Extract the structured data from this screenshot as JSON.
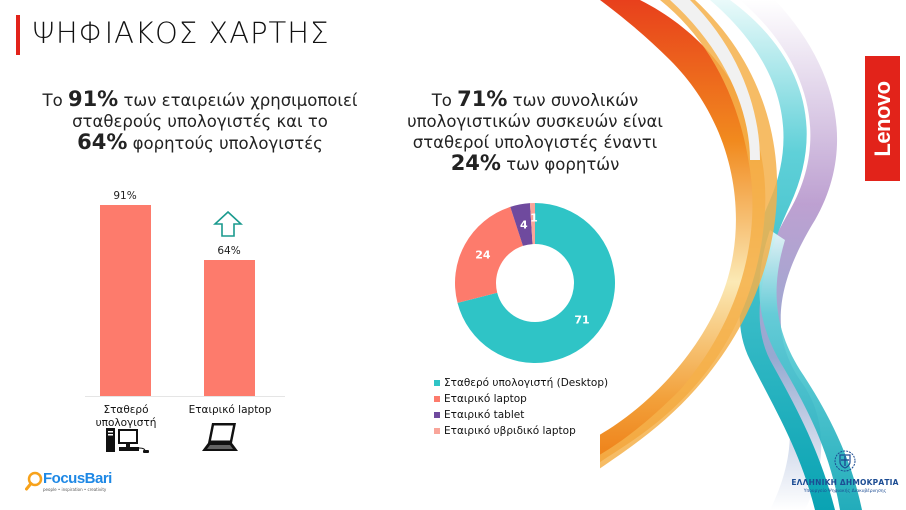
{
  "page": {
    "title": "ΨΗΦΙΑΚΟΣ ΧΑΡΤΗΣ",
    "accent_color": "#e2231a"
  },
  "left_panel": {
    "headline": {
      "part1": "Το ",
      "bold1": "91%",
      "part2": " των εταιρειών χρησιμοποιεί σταθερούς υπολογιστές και το ",
      "bold2": "64%",
      "part3": " φορητούς υπολογιστές"
    },
    "bars": [
      {
        "label": "Σταθερό υπολογιστή",
        "value_label": "91%",
        "icon": "desktop-computer-icon"
      },
      {
        "label": "Εταιρικό laptop",
        "value_label": "64%",
        "icon": "laptop-icon"
      }
    ],
    "highlight_icon": "up-arrow-icon"
  },
  "right_panel": {
    "headline": {
      "part1": "Το ",
      "bold1": "71%",
      "part2": " των συνολικών υπολογιστικών συσκευών είναι σταθεροί υπολογιστές έναντι ",
      "bold2": "24%",
      "part3": " των φορητών"
    },
    "legend": [
      {
        "label": "Σταθερό υπολογιστή (Desktop)",
        "color": "#2fc4c6"
      },
      {
        "label": "Εταιρικό laptop",
        "color": "#fd7b6c"
      },
      {
        "label": "Εταιρικό tablet",
        "color": "#6f4a9e"
      },
      {
        "label": "Εταιρικό υβριδικό laptop",
        "color": "#f9a59a"
      }
    ]
  },
  "chart_data": [
    {
      "type": "bar",
      "title": "Το 91% των εταιρειών χρησιμοποιεί σταθερούς υπολογιστές και το 64% φορητούς υπολογιστές",
      "categories": [
        "Σταθερό υπολογιστή",
        "Εταιρικό laptop"
      ],
      "values": [
        91,
        64
      ],
      "data_labels": [
        "91%",
        "64%"
      ],
      "unit": "%",
      "color": "#fd7b6c",
      "xlabel": "",
      "ylabel": "",
      "ylim": [
        0,
        100
      ],
      "grid": false
    },
    {
      "type": "pie",
      "donut": true,
      "title": "Το 71% των συνολικών υπολογιστικών συσκευών είναι σταθεροί υπολογιστές έναντι 24% των φορητών",
      "categories": [
        "Σταθερό υπολογιστή (Desktop)",
        "Εταιρικό laptop",
        "Εταιρικό tablet",
        "Εταιρικό υβριδικό laptop"
      ],
      "values": [
        71,
        24,
        4,
        1
      ],
      "data_labels": [
        "71",
        "24",
        "4",
        "1"
      ],
      "colors": [
        "#2fc4c6",
        "#fd7b6c",
        "#6f4a9e",
        "#f9a59a"
      ],
      "legend_position": "bottom"
    }
  ],
  "branding": {
    "lenovo": "Lenovo",
    "focusbari": {
      "name": "FocusBari",
      "tagline": "people • inspiration • creativity"
    },
    "government": {
      "name": "ΕΛΛΗΝΙΚΗ ΔΗΜΟΚΡΑΤΙΑ",
      "subtitle": "Υπουργείο Ψηφιακής Διακυβέρνησης"
    }
  }
}
